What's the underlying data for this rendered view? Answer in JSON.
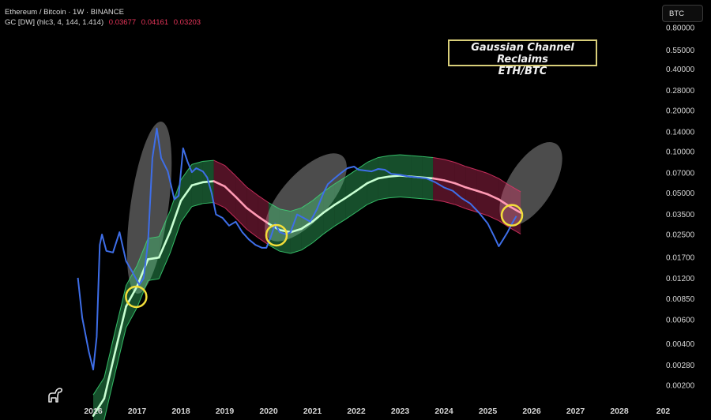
{
  "header": {
    "symbol_line": "Ethereum / Bitcoin · 1W · BINANCE",
    "indicator_label": "GC [DW] (hlc3, 4, 144, 1.414)",
    "indicator_values": [
      "0.03677",
      "0.04161",
      "0.03203"
    ]
  },
  "currency_button": "BTC",
  "annotation": {
    "line1": "Gaussian Channel Reclaims",
    "line2": "ETH/BTC"
  },
  "logo_icon": "tradingview-dino-icon",
  "colors": {
    "price_line": "#3e6ee8",
    "channel_green": "#3fe07a",
    "channel_red": "#e8356a",
    "highlight_circle": "#f3df3a",
    "indicator_red": "#e8355a"
  },
  "chart_data": {
    "type": "line",
    "title": "Gaussian Channel Reclaims ETH/BTC",
    "y_scale": "log",
    "ylim": [
      0.0017,
      0.8
    ],
    "y_ticks": [
      "0.80000",
      "0.55000",
      "0.40000",
      "0.28000",
      "0.20000",
      "0.14000",
      "0.10000",
      "0.07000",
      "0.05000",
      "0.03500",
      "0.02500",
      "0.01700",
      "0.01200",
      "0.00850",
      "0.00600",
      "0.00400",
      "0.00280",
      "0.00200"
    ],
    "x_ticks": [
      "2016",
      "2017",
      "2018",
      "2019",
      "2020",
      "2021",
      "2022",
      "2023",
      "2024",
      "2025",
      "2026",
      "2027",
      "2028",
      "202"
    ],
    "series": [
      {
        "role": "price",
        "x": [
          2015.65,
          2015.75,
          2015.9,
          2016.0,
          2016.08,
          2016.15,
          2016.2,
          2016.3,
          2016.45,
          2016.6,
          2016.75,
          2016.9,
          2017.05,
          2017.15,
          2017.25,
          2017.35,
          2017.45,
          2017.55,
          2017.7,
          2017.85,
          2017.95,
          2018.05,
          2018.15,
          2018.25,
          2018.35,
          2018.5,
          2018.6,
          2018.7,
          2018.8,
          2018.95,
          2019.1,
          2019.25,
          2019.4,
          2019.55,
          2019.7,
          2019.85,
          2019.95,
          2020.05,
          2020.15,
          2020.25,
          2020.4,
          2020.5,
          2020.65,
          2020.8,
          2020.95,
          2021.1,
          2021.25,
          2021.35,
          2021.5,
          2021.65,
          2021.8,
          2021.95,
          2022.05,
          2022.2,
          2022.35,
          2022.5,
          2022.65,
          2022.8,
          2023.0,
          2023.2,
          2023.4,
          2023.6,
          2023.8,
          2024.0,
          2024.2,
          2024.4,
          2024.6,
          2024.8,
          2025.0,
          2025.15,
          2025.25,
          2025.35,
          2025.45,
          2025.55,
          2025.65
        ],
        "values": [
          0.0121,
          0.0062,
          0.0035,
          0.0026,
          0.0045,
          0.021,
          0.025,
          0.019,
          0.0185,
          0.026,
          0.016,
          0.0132,
          0.0108,
          0.012,
          0.022,
          0.09,
          0.148,
          0.09,
          0.072,
          0.045,
          0.048,
          0.106,
          0.085,
          0.071,
          0.076,
          0.072,
          0.065,
          0.05,
          0.035,
          0.033,
          0.029,
          0.031,
          0.026,
          0.023,
          0.021,
          0.02,
          0.02,
          0.024,
          0.03,
          0.026,
          0.025,
          0.026,
          0.035,
          0.033,
          0.031,
          0.038,
          0.05,
          0.058,
          0.064,
          0.07,
          0.076,
          0.078,
          0.074,
          0.073,
          0.072,
          0.075,
          0.074,
          0.069,
          0.068,
          0.066,
          0.065,
          0.064,
          0.06,
          0.055,
          0.052,
          0.046,
          0.042,
          0.036,
          0.03,
          0.024,
          0.0205,
          0.023,
          0.026,
          0.03,
          0.034
        ]
      },
      {
        "role": "gaussian-channel-mid",
        "x": [
          2016.0,
          2016.25,
          2016.5,
          2016.75,
          2017.0,
          2017.25,
          2017.5,
          2017.75,
          2018.0,
          2018.25,
          2018.5,
          2018.75,
          2019.0,
          2019.25,
          2019.5,
          2019.75,
          2020.0,
          2020.25,
          2020.5,
          2020.75,
          2021.0,
          2021.25,
          2021.5,
          2021.75,
          2022.0,
          2022.25,
          2022.5,
          2022.75,
          2023.0,
          2023.25,
          2023.5,
          2023.75,
          2024.0,
          2024.25,
          2024.5,
          2024.75,
          2025.0,
          2025.25,
          2025.5,
          2025.75
        ],
        "values": [
          0.0012,
          0.0016,
          0.0035,
          0.0075,
          0.0105,
          0.0165,
          0.017,
          0.026,
          0.044,
          0.057,
          0.06,
          0.061,
          0.056,
          0.047,
          0.039,
          0.034,
          0.03,
          0.027,
          0.026,
          0.0275,
          0.031,
          0.036,
          0.041,
          0.046,
          0.052,
          0.059,
          0.064,
          0.066,
          0.067,
          0.066,
          0.065,
          0.064,
          0.062,
          0.059,
          0.055,
          0.052,
          0.049,
          0.045,
          0.04,
          0.036
        ]
      }
    ],
    "channel": {
      "upper_factor": 1.42,
      "lower_factor": 0.7,
      "red_segments": [
        [
          2018.75,
          2020.1
        ],
        [
          2023.65,
          2025.8
        ]
      ]
    },
    "highlight_circles_x": [
      2016.98,
      2020.18,
      2025.55
    ],
    "highlight_circles_y": [
      0.0088,
      0.0247,
      0.0345
    ],
    "shaded_ellipses": [
      "2017-pump",
      "2020-2021-run",
      "2025-26-projection"
    ]
  }
}
